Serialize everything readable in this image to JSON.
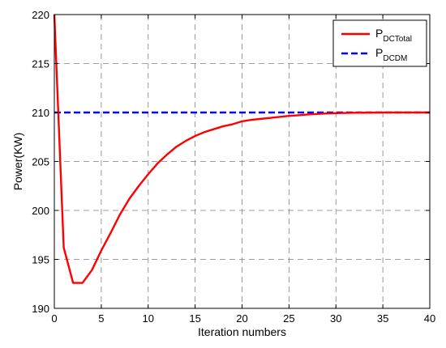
{
  "chart_data": {
    "type": "line",
    "xlabel": "Iteration numbers",
    "ylabel": "Power(KW)",
    "xlim": [
      0,
      40
    ],
    "ylim": [
      190,
      220
    ],
    "xticks": [
      0,
      5,
      10,
      15,
      20,
      25,
      30,
      35,
      40
    ],
    "yticks": [
      190,
      195,
      200,
      205,
      210,
      215,
      220
    ],
    "xtick_labels": [
      "0",
      "5",
      "10",
      "15",
      "20",
      "25",
      "30",
      "35",
      "40"
    ],
    "ytick_labels": [
      "190",
      "195",
      "200",
      "205",
      "210",
      "215",
      "220"
    ],
    "grid": true,
    "legend_position": "top-right",
    "series": [
      {
        "name_main": "P",
        "name_sub": "DCTotal",
        "color": "#ff0000",
        "style": "solid",
        "x": [
          0,
          1,
          2,
          3,
          4,
          5,
          6,
          7,
          8,
          9,
          10,
          11,
          12,
          13,
          14,
          15,
          16,
          17,
          18,
          19,
          20,
          21,
          22,
          23,
          24,
          25,
          26,
          27,
          28,
          29,
          30,
          31,
          32,
          33,
          34,
          35,
          36,
          37,
          38,
          39,
          40
        ],
        "y": [
          220,
          196.2,
          192.6,
          192.6,
          193.9,
          195.9,
          197.7,
          199.6,
          201.2,
          202.5,
          203.7,
          204.8,
          205.7,
          206.5,
          207.1,
          207.6,
          208.0,
          208.3,
          208.6,
          208.8,
          209.1,
          209.25,
          209.35,
          209.45,
          209.55,
          209.65,
          209.72,
          209.8,
          209.85,
          209.9,
          209.93,
          209.95,
          209.97,
          209.98,
          209.99,
          210.0,
          210.0,
          210.0,
          210.0,
          210.0,
          210.0
        ]
      },
      {
        "name_main": "P",
        "name_sub": "DCDM",
        "color": "#0000ff",
        "style": "dashed",
        "x": [
          0,
          40
        ],
        "y": [
          210,
          210
        ]
      }
    ]
  }
}
